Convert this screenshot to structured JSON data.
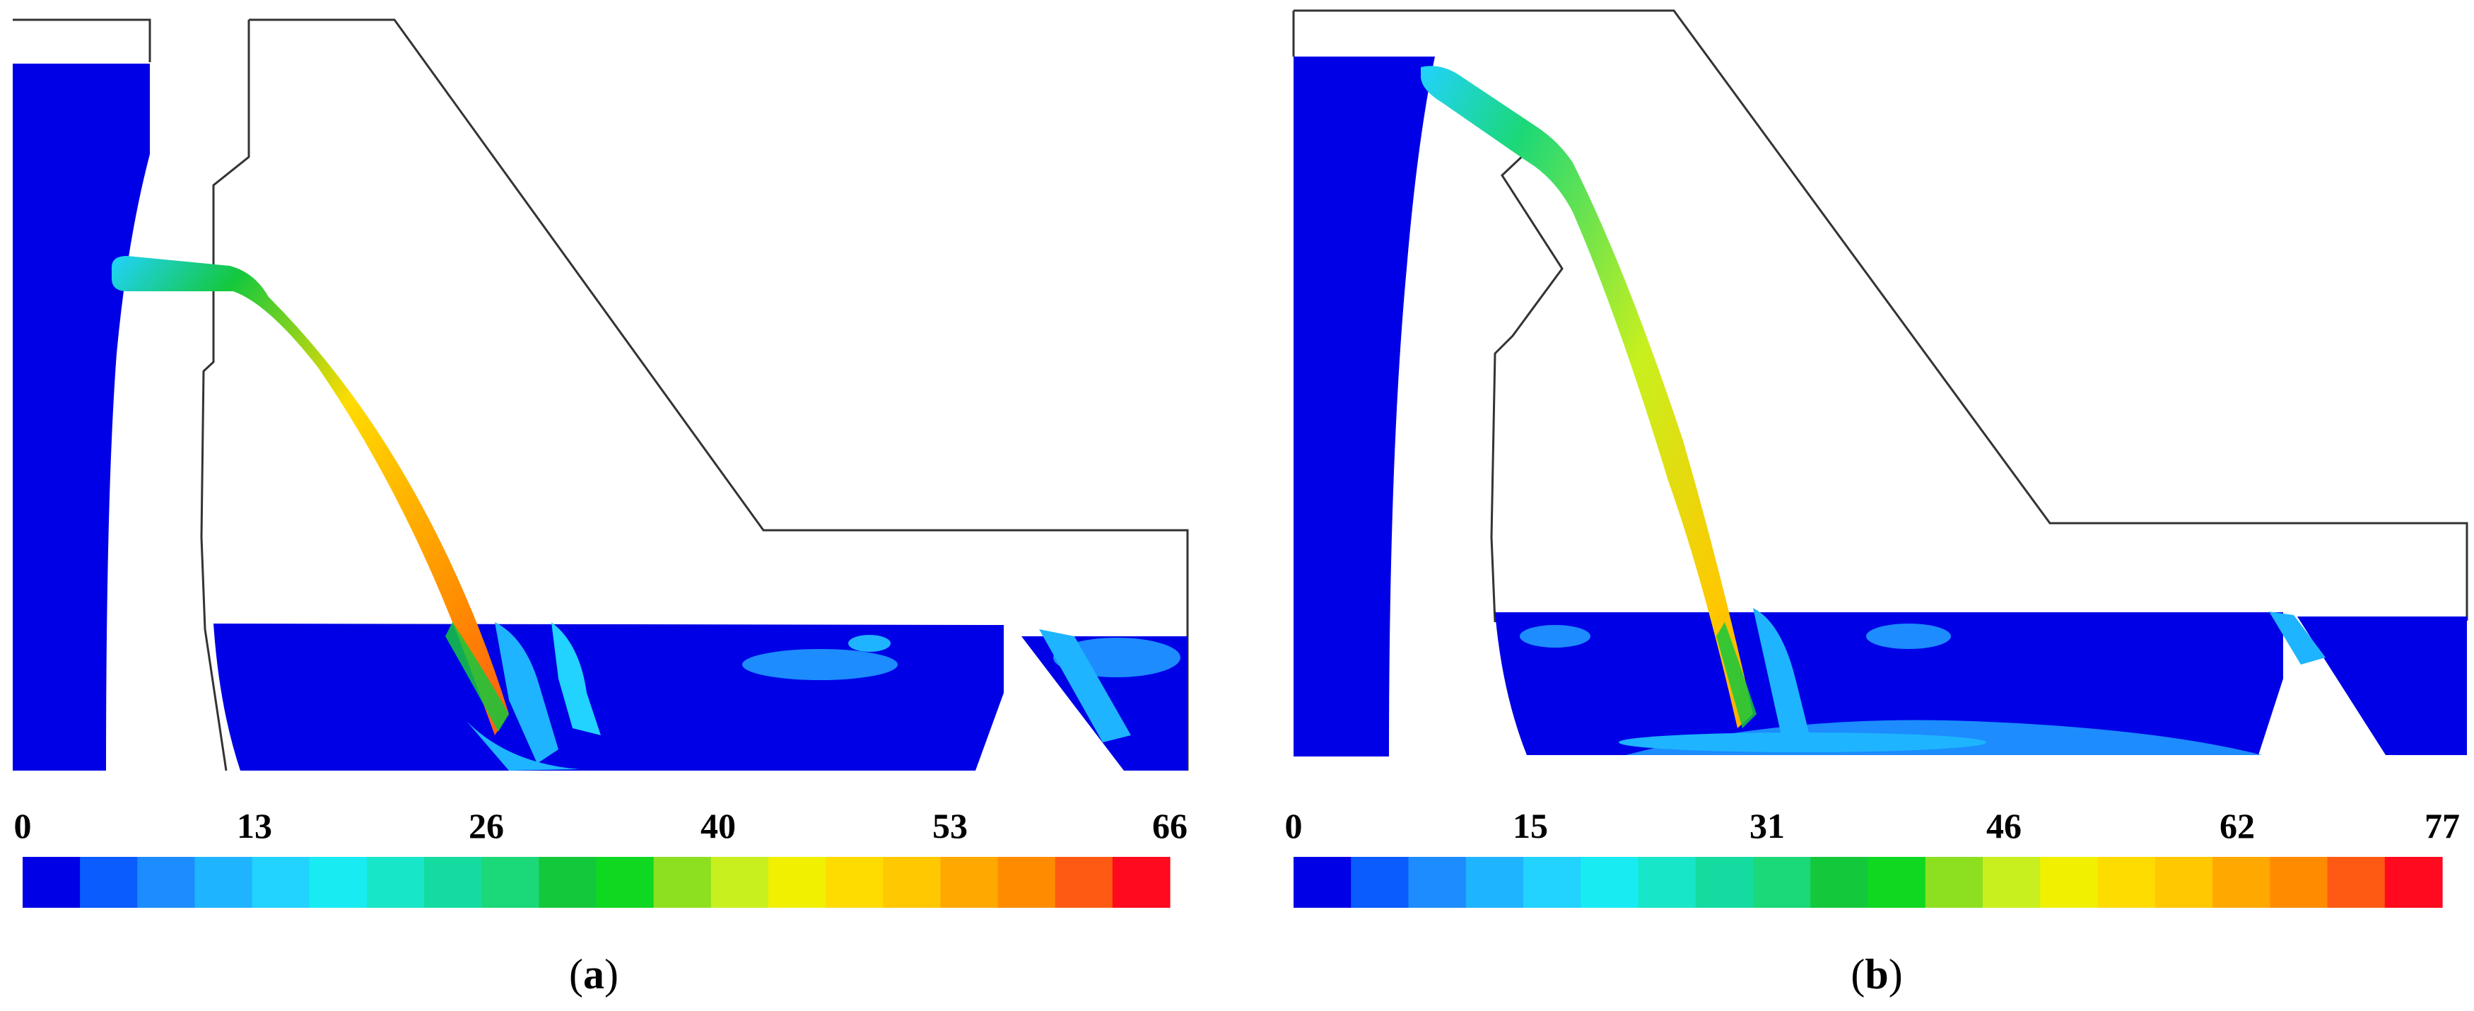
{
  "panels": [
    {
      "id": "a",
      "caption_open": "(",
      "caption_letter": "a",
      "caption_close": ")",
      "colorbar": {
        "ticks": [
          "0",
          "13",
          "26",
          "40",
          "53",
          "66"
        ]
      }
    },
    {
      "id": "b",
      "caption_open": "(",
      "caption_letter": "b",
      "caption_close": ")",
      "colorbar": {
        "ticks": [
          "0",
          "15",
          "31",
          "46",
          "62",
          "77"
        ]
      }
    }
  ],
  "colors": {
    "scale": [
      "#0000e6",
      "#0a5cff",
      "#1c8cff",
      "#1fb4ff",
      "#22d2ff",
      "#18ecf2",
      "#18e6c8",
      "#14dca0",
      "#1bd878",
      "#14c83c",
      "#0ed820",
      "#8ce020",
      "#c8f01e",
      "#f0f000",
      "#ffdc00",
      "#ffc800",
      "#ffa800",
      "#ff8c00",
      "#ff5a14",
      "#ff0a1e"
    ],
    "structure_outline": "#333333",
    "water": "#0000e6"
  }
}
